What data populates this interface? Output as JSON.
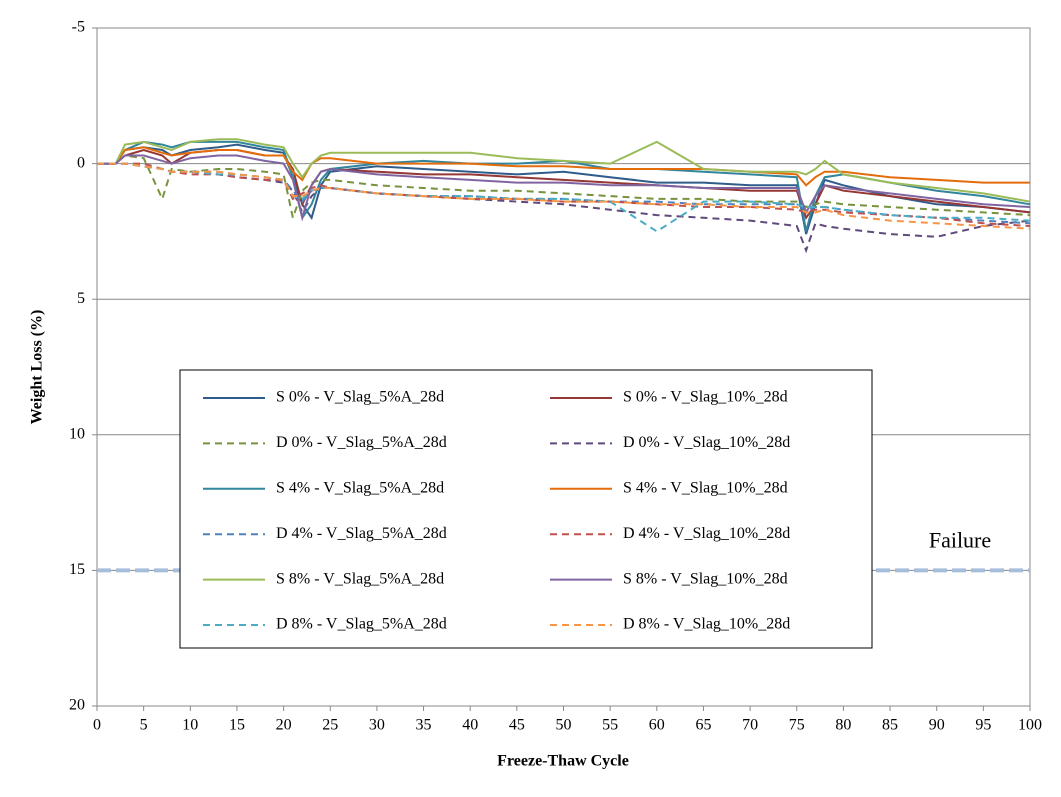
{
  "chart_data": {
    "type": "line",
    "x_label": "Freeze-Thaw Cycle",
    "y_label": "Weight Loss (%)",
    "x": [
      0,
      2,
      3,
      5,
      7,
      8,
      10,
      13,
      15,
      18,
      20,
      21,
      22,
      23,
      24,
      25,
      30,
      35,
      40,
      45,
      50,
      55,
      60,
      65,
      70,
      75,
      76,
      77,
      78,
      80,
      85,
      90,
      95,
      100
    ],
    "xlim": [
      0,
      100
    ],
    "xticks": [
      0,
      5,
      10,
      15,
      20,
      25,
      30,
      35,
      40,
      45,
      50,
      55,
      60,
      65,
      70,
      75,
      80,
      85,
      90,
      95,
      100
    ],
    "ylim": [
      -5,
      20
    ],
    "yticks": [
      -5,
      0,
      5,
      10,
      15,
      20
    ],
    "y_reversed": true,
    "grid": true,
    "failure_line": {
      "value": 15,
      "label": "Failure",
      "color": "#a6bddb"
    },
    "series": [
      {
        "name": "S 0% - V_Slag_5%A_28d",
        "color": "#2f5c8a",
        "dash": false,
        "values": [
          0,
          0,
          -0.5,
          -0.6,
          -0.5,
          -0.3,
          -0.5,
          -0.6,
          -0.7,
          -0.5,
          -0.4,
          0.5,
          1.5,
          2,
          0.8,
          0.3,
          0.1,
          0.2,
          0.3,
          0.4,
          0.3,
          0.5,
          0.7,
          0.7,
          0.8,
          0.8,
          2.6,
          1.5,
          0.6,
          0.8,
          1.2,
          1.5,
          1.6,
          1.8
        ]
      },
      {
        "name": "S 0% - V_Slag_10%_28d",
        "color": "#953735",
        "dash": false,
        "values": [
          0,
          0,
          -0.3,
          -0.5,
          -0.3,
          0,
          -0.4,
          -0.5,
          -0.5,
          -0.3,
          -0.3,
          0.2,
          1.5,
          0.8,
          0.3,
          0.2,
          0.3,
          0.4,
          0.4,
          0.5,
          0.6,
          0.7,
          0.8,
          0.9,
          1.0,
          1.0,
          2.0,
          1.5,
          0.8,
          1.0,
          1.2,
          1.4,
          1.6,
          1.8
        ]
      },
      {
        "name": "D 0% - V_Slag_5%A_28d",
        "color": "#77933c",
        "dash": true,
        "values": [
          0,
          0,
          -0.3,
          -0.2,
          1.3,
          0.2,
          0.3,
          0.2,
          0.2,
          0.3,
          0.4,
          2,
          1.0,
          0.7,
          0.6,
          0.6,
          0.8,
          0.9,
          1.0,
          1.0,
          1.1,
          1.2,
          1.3,
          1.3,
          1.4,
          1.4,
          1.6,
          1.5,
          1.4,
          1.5,
          1.6,
          1.7,
          1.8,
          1.9
        ]
      },
      {
        "name": "D 0% - V_Slag_10%_28d",
        "color": "#604a7b",
        "dash": true,
        "values": [
          0,
          0,
          0,
          0.1,
          0.2,
          0.3,
          0.3,
          0.4,
          0.5,
          0.6,
          0.7,
          1.0,
          1.8,
          1.2,
          0.9,
          0.9,
          1.1,
          1.2,
          1.3,
          1.4,
          1.5,
          1.7,
          1.9,
          2.0,
          2.1,
          2.3,
          3.2,
          2.2,
          2.3,
          2.4,
          2.6,
          2.7,
          2.3,
          2.1
        ]
      },
      {
        "name": "S 4% - V_Slag_5%A_28d",
        "color": "#31859c",
        "dash": false,
        "values": [
          0,
          0,
          -0.5,
          -0.8,
          -0.7,
          -0.6,
          -0.8,
          -0.8,
          -0.8,
          -0.6,
          -0.5,
          0.5,
          2.0,
          1.5,
          0.6,
          0.2,
          0,
          -0.1,
          0,
          0,
          -0.1,
          0.2,
          0.2,
          0.3,
          0.4,
          0.5,
          2.5,
          1.2,
          0.5,
          0.4,
          0.7,
          1.0,
          1.2,
          1.5
        ]
      },
      {
        "name": "S 4% - V_Slag_10%_28d",
        "color": "#e46c0a",
        "dash": false,
        "values": [
          0,
          0,
          -0.5,
          -0.6,
          -0.4,
          -0.3,
          -0.4,
          -0.5,
          -0.5,
          -0.3,
          -0.3,
          0.3,
          0.6,
          0,
          -0.2,
          -0.2,
          0,
          0,
          0,
          0.1,
          0.1,
          0.2,
          0.2,
          0.2,
          0.3,
          0.4,
          0.8,
          0.5,
          0.3,
          0.3,
          0.5,
          0.6,
          0.7,
          0.7
        ]
      },
      {
        "name": "D 4% - V_Slag_5%A_28d",
        "color": "#4f81bd",
        "dash": true,
        "values": [
          0,
          0,
          0,
          0.1,
          0.2,
          0.3,
          0.3,
          0.3,
          0.4,
          0.5,
          0.6,
          1.0,
          1.4,
          1.0,
          0.9,
          0.9,
          1.1,
          1.2,
          1.2,
          1.3,
          1.3,
          1.4,
          1.4,
          1.5,
          1.5,
          1.5,
          1.7,
          1.6,
          1.6,
          1.7,
          1.9,
          2.0,
          2.1,
          2.2
        ]
      },
      {
        "name": "D 4% - V_Slag_10%_28d",
        "color": "#c0504d",
        "dash": true,
        "values": [
          0,
          0,
          0,
          0,
          0.2,
          0.3,
          0.4,
          0.4,
          0.5,
          0.6,
          0.6,
          1.3,
          1.1,
          0.9,
          0.8,
          0.9,
          1.1,
          1.2,
          1.3,
          1.3,
          1.4,
          1.4,
          1.5,
          1.6,
          1.6,
          1.7,
          1.8,
          1.7,
          1.7,
          1.8,
          1.9,
          2.0,
          2.2,
          2.3
        ]
      },
      {
        "name": "S 8% - V_Slag_5%A_28d",
        "color": "#9bbb59",
        "dash": false,
        "values": [
          0,
          0,
          -0.7,
          -0.8,
          -0.6,
          -0.5,
          -0.8,
          -0.9,
          -0.9,
          -0.7,
          -0.6,
          0,
          0.5,
          0,
          -0.3,
          -0.4,
          -0.4,
          -0.4,
          -0.4,
          -0.2,
          -0.1,
          0,
          -0.8,
          0.2,
          0.3,
          0.3,
          0.4,
          0.2,
          -0.1,
          0.4,
          0.7,
          0.9,
          1.1,
          1.4
        ]
      },
      {
        "name": "S 8% - V_Slag_10%_28d",
        "color": "#8064a2",
        "dash": false,
        "values": [
          0,
          0,
          -0.3,
          -0.3,
          -0.1,
          0,
          -0.2,
          -0.3,
          -0.3,
          -0.1,
          0,
          0.6,
          2,
          0.8,
          0.3,
          0.2,
          0.4,
          0.5,
          0.6,
          0.7,
          0.7,
          0.8,
          0.8,
          0.9,
          0.9,
          0.9,
          1.8,
          1.2,
          0.8,
          0.9,
          1.1,
          1.3,
          1.5,
          1.6
        ]
      },
      {
        "name": "D 8% - V_Slag_5%A_28d",
        "color": "#4bacc6",
        "dash": true,
        "values": [
          0,
          0,
          0,
          0.1,
          0.2,
          0.3,
          0.3,
          0.4,
          0.4,
          0.5,
          0.6,
          1.2,
          1.3,
          1.0,
          0.9,
          0.9,
          1.1,
          1.2,
          1.2,
          1.3,
          1.3,
          1.4,
          2.5,
          1.4,
          1.4,
          1.5,
          1.6,
          1.6,
          1.6,
          1.7,
          1.9,
          2.0,
          2.0,
          2.1
        ]
      },
      {
        "name": "D 8% - V_Slag_10%_28d",
        "color": "#f79646",
        "dash": true,
        "values": [
          0,
          0,
          0,
          0.1,
          0.2,
          0.3,
          0.3,
          0.3,
          0.4,
          0.5,
          0.6,
          1.2,
          1.2,
          1.0,
          0.9,
          0.9,
          1.1,
          1.2,
          1.3,
          1.3,
          1.4,
          1.4,
          1.5,
          1.5,
          1.6,
          1.6,
          1.8,
          1.8,
          1.7,
          1.9,
          2.1,
          2.2,
          2.3,
          2.4
        ]
      }
    ]
  }
}
